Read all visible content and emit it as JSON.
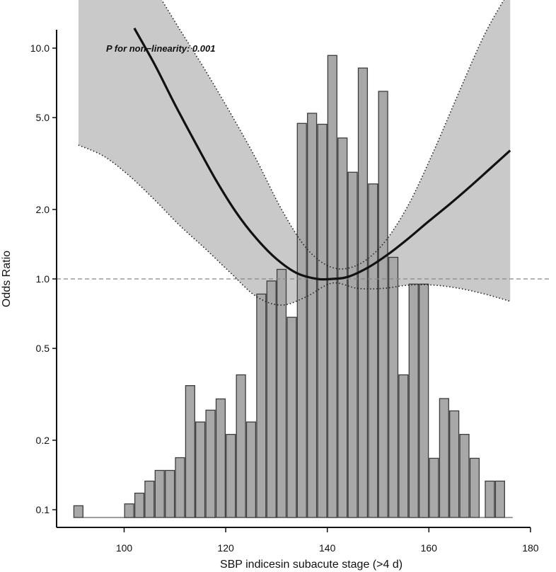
{
  "chart_data": {
    "type": "bar+line",
    "title": "",
    "xlabel": "SBP indicesin subacute stage (>4 d)",
    "ylabel": "Odds Ratio",
    "xlim": [
      88,
      182
    ],
    "ylim_log": [
      0.09,
      15
    ],
    "x_ticks": [
      100,
      120,
      140,
      160,
      180
    ],
    "x_tick_labels": [
      "100",
      "120",
      "140",
      "160",
      "180"
    ],
    "y_ticks": [
      0.1,
      0.2,
      0.5,
      1.0,
      2.0,
      5.0,
      10.0
    ],
    "y_tick_labels": [
      "0.1",
      "0.2",
      "0.5",
      "1.0",
      "2.0",
      "5.0",
      "10.0"
    ],
    "annotation": "P for non−linearity: 0.001",
    "reference_line": 1.0,
    "histogram": {
      "bin_width": 1.8,
      "baseline": 0.0925,
      "x": [
        91,
        101,
        103,
        105,
        107,
        109,
        111,
        113,
        115,
        117,
        119,
        121,
        123,
        125,
        127,
        129,
        131,
        133,
        135,
        137,
        139,
        141,
        143,
        145,
        147,
        149,
        151,
        153,
        155,
        157,
        159,
        161,
        163,
        165,
        167,
        169,
        172,
        174
      ],
      "values": [
        0.104,
        0.106,
        0.118,
        0.133,
        0.148,
        0.148,
        0.168,
        0.345,
        0.24,
        0.27,
        0.302,
        0.212,
        0.384,
        0.24,
        0.86,
        0.98,
        1.1,
        0.682,
        4.72,
        5.22,
        4.68,
        9.3,
        4.08,
        2.9,
        8.2,
        2.58,
        6.5,
        1.24,
        0.384,
        0.95,
        0.95,
        0.167,
        0.303,
        0.268,
        0.212,
        0.167,
        0.133,
        0.133
      ]
    },
    "series": [
      {
        "name": "Odds Ratio",
        "x": [
          102,
          106,
          110,
          114,
          118,
          122,
          126,
          130,
          134,
          138,
          141,
          144,
          148,
          152,
          156,
          160,
          164,
          168,
          172,
          176
        ],
        "values": [
          12.2,
          8.5,
          5.7,
          3.9,
          2.7,
          1.95,
          1.5,
          1.22,
          1.06,
          1.0,
          1.0,
          1.02,
          1.12,
          1.28,
          1.5,
          1.78,
          2.1,
          2.5,
          3.0,
          3.6
        ]
      },
      {
        "name": "95% CI upper",
        "x": [
          91,
          96,
          101,
          106,
          111,
          116,
          121,
          126,
          131,
          136,
          141,
          146,
          151,
          156,
          161,
          166,
          171,
          176
        ],
        "values": [
          35,
          30,
          25,
          18,
          12,
          8,
          5.2,
          3.3,
          2.0,
          1.35,
          1.12,
          1.15,
          1.42,
          2.1,
          3.6,
          6.5,
          11.5,
          18
        ]
      },
      {
        "name": "95% CI lower",
        "x": [
          91,
          96,
          101,
          106,
          111,
          116,
          121,
          126,
          131,
          136,
          141,
          146,
          151,
          156,
          161,
          166,
          171,
          176
        ],
        "values": [
          3.8,
          3.4,
          2.8,
          2.2,
          1.7,
          1.35,
          1.06,
          0.84,
          0.77,
          0.84,
          0.96,
          0.91,
          0.91,
          0.94,
          0.94,
          0.91,
          0.86,
          0.8
        ]
      }
    ],
    "colors": {
      "bar_fill": "#a8a8a8",
      "bar_stroke": "#3c3c3c",
      "band_fill": "#c9c9c9",
      "line": "#111111",
      "reference": "#888888"
    }
  }
}
